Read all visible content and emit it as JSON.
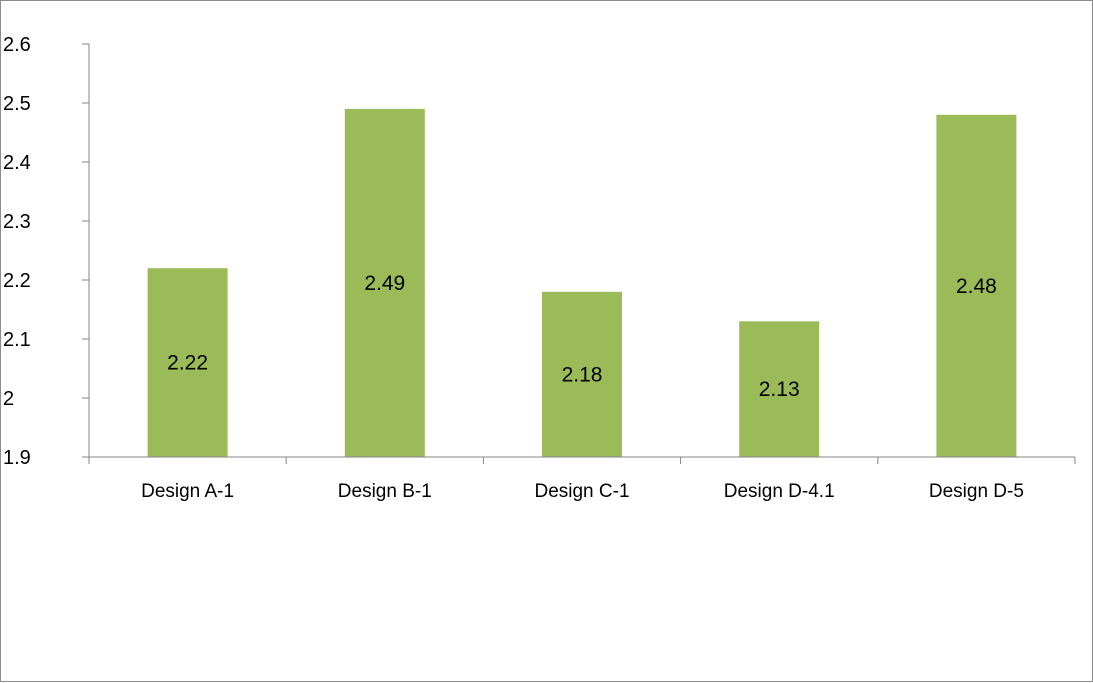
{
  "chart_data": {
    "type": "bar",
    "title": "",
    "xlabel": "",
    "ylabel": "",
    "categories": [
      "Design A-1",
      "Design B-1",
      "Design C-1",
      "Design D-4.1",
      "Design D-5"
    ],
    "values": [
      2.22,
      2.49,
      2.18,
      2.13,
      2.48
    ],
    "data_labels": [
      "2.22",
      "2.49",
      "2.18",
      "2.13",
      "2.48"
    ],
    "ylim": [
      1.9,
      2.6
    ],
    "y_ticks": [
      1.9,
      2.0,
      2.1,
      2.2,
      2.3,
      2.4,
      2.5,
      2.6
    ],
    "y_tick_labels": [
      "1.9",
      "2",
      "2.1",
      "2.2",
      "2.3",
      "2.4",
      "2.5",
      "2.6"
    ],
    "grid": false,
    "legend": "none",
    "bar_color": "#9BBB59",
    "axis_color": "#868686",
    "border_color": "#8C8C8C"
  }
}
